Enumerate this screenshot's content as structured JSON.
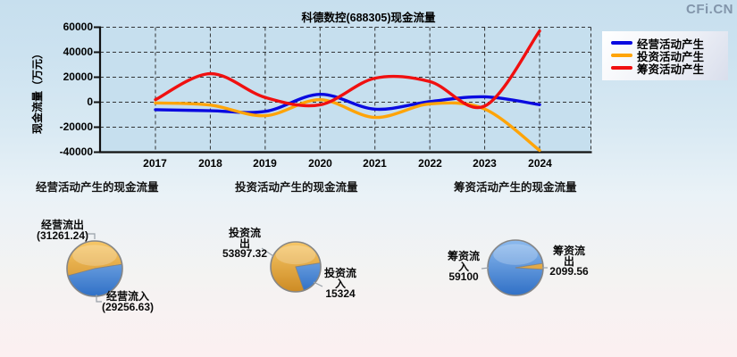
{
  "page": {
    "watermark": "CFi.CN"
  },
  "chart_data": [
    {
      "type": "line",
      "title": "科德数控(688305)现金流量",
      "ylabel": "现金流量（万元）",
      "ylim": [
        -40000,
        60000
      ],
      "yticks": [
        "60000",
        "40000",
        "20000",
        "0",
        "-20000",
        "-40000"
      ],
      "categories": [
        "2017",
        "2018",
        "2019",
        "2020",
        "2021",
        "2022",
        "2023",
        "2024"
      ],
      "grid": "dashed",
      "legend_position": "top-right",
      "series": [
        {
          "name": "经营活动产生",
          "color": "#0a0ae0",
          "values": [
            -6000,
            -6800,
            -7400,
            6300,
            -5600,
            500,
            4300,
            -2004.61
          ]
        },
        {
          "name": "投资活动产生",
          "color": "#ffa408",
          "values": [
            -600,
            -2300,
            -10800,
            2000,
            -12200,
            -1400,
            -5500,
            -38573.32
          ]
        },
        {
          "name": "筹资活动产生",
          "color": "#f01010",
          "values": [
            2000,
            22800,
            3800,
            -2100,
            19200,
            16500,
            -3100,
            57000.44
          ]
        }
      ]
    },
    {
      "type": "pie",
      "title": "经营活动产生的现金流量",
      "slices": [
        {
          "label": "经营流出",
          "value": 31261.24,
          "value_display": "(31261.24)",
          "tone": "orange"
        },
        {
          "label": "经营流入",
          "value": 29256.63,
          "value_display": "(29256.63)",
          "tone": "blue"
        }
      ]
    },
    {
      "type": "pie",
      "title": "投资活动产生的现金流量",
      "slices": [
        {
          "label": "投资流出",
          "value": 53897.32,
          "value_display": "53897.32",
          "tone": "orange"
        },
        {
          "label": "投资流入",
          "value": 15324,
          "value_display": "15324",
          "tone": "blue"
        }
      ]
    },
    {
      "type": "pie",
      "title": "筹资活动产生的现金流量",
      "slices": [
        {
          "label": "筹资流入",
          "value": 59100,
          "value_display": "59100",
          "tone": "blue"
        },
        {
          "label": "筹资流出",
          "value": 2099.56,
          "value_display": "2099.56",
          "tone": "orange"
        }
      ]
    }
  ]
}
